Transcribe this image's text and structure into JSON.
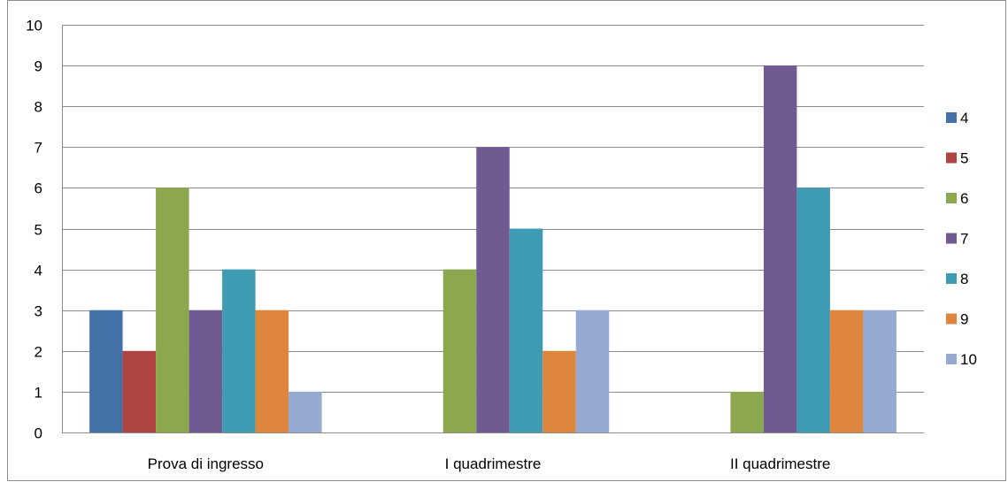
{
  "chart_data": {
    "type": "bar",
    "title": "",
    "xlabel": "",
    "ylabel": "",
    "ylim": [
      0,
      10
    ],
    "yticks": [
      0,
      1,
      2,
      3,
      4,
      5,
      6,
      7,
      8,
      9,
      10
    ],
    "grid": true,
    "legend_position": "right",
    "categories": [
      "Prova di ingresso",
      "I quadrimestre",
      "II quadrimestre"
    ],
    "series": [
      {
        "name": "4",
        "color": "#4472A8",
        "values": [
          3,
          0,
          0
        ]
      },
      {
        "name": "5",
        "color": "#B04442",
        "values": [
          2,
          0,
          0
        ]
      },
      {
        "name": "6",
        "color": "#8BA84E",
        "values": [
          6,
          4,
          1
        ]
      },
      {
        "name": "7",
        "color": "#715A92",
        "values": [
          3,
          7,
          9
        ]
      },
      {
        "name": "8",
        "color": "#3F9BB2",
        "values": [
          4,
          5,
          6
        ]
      },
      {
        "name": "9",
        "color": "#DE853E",
        "values": [
          3,
          2,
          3
        ]
      },
      {
        "name": "10",
        "color": "#96A9D2",
        "values": [
          1,
          3,
          3
        ]
      }
    ]
  }
}
